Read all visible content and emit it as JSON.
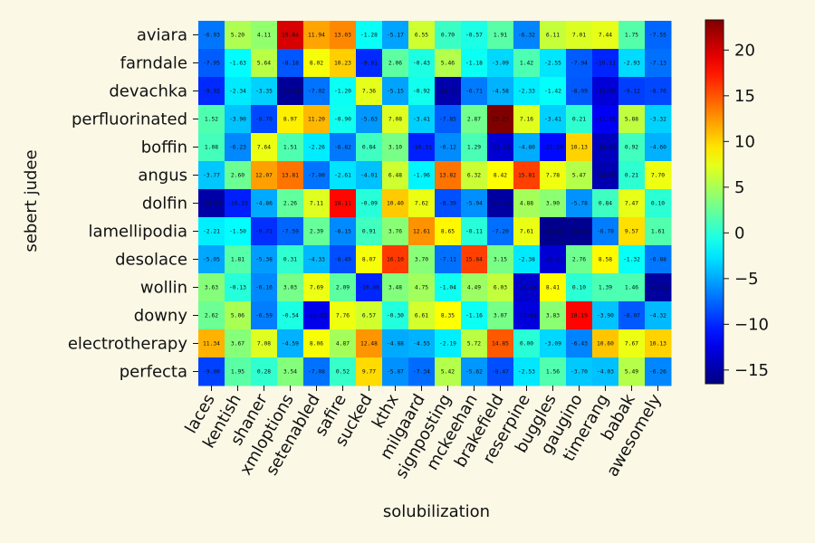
{
  "chart_data": {
    "type": "heatmap",
    "title": "",
    "xlabel": "solubilization",
    "ylabel": "sebert judee",
    "x_categories": [
      "laces",
      "kentish",
      "shaner",
      "xmloptions",
      "setenabled",
      "safire",
      "sucked",
      "kthx",
      "milgaard",
      "signposting",
      "mckeehan",
      "brakefield",
      "reserpine",
      "buggles",
      "gaugino",
      "timerang",
      "babak",
      "awesomely"
    ],
    "y_categories": [
      "aviara",
      "farndale",
      "devachka",
      "perfluorinated",
      "boffin",
      "angus",
      "dolfin",
      "lamellipodia",
      "desolace",
      "wollin",
      "downy",
      "electrotherapy",
      "perfecta"
    ],
    "values": [
      [
        -6.93,
        5.2,
        4.11,
        19.84,
        11.94,
        13.03,
        -1.28,
        -5.17,
        6.55,
        0.7,
        -0.57,
        1.91,
        -6.32,
        6.11,
        7.01,
        7.44,
        1.75,
        -7.55
      ],
      [
        -7.95,
        -1.63,
        5.64,
        -8.18,
        8.02,
        10.23,
        -9.91,
        2.06,
        -0.43,
        5.46,
        -1.18,
        -3.09,
        1.42,
        -2.55,
        -7.94,
        -10.11,
        -2.93,
        -7.13
      ],
      [
        -9.92,
        -2.34,
        -3.35,
        -15.56,
        -7.02,
        -1.2,
        7.36,
        -5.15,
        -0.92,
        -14.77,
        -6.71,
        -4.58,
        -2.33,
        -1.42,
        -8.09,
        -13.09,
        -9.12,
        -8.76
      ],
      [
        1.52,
        -3.9,
        -8.7,
        8.97,
        11.2,
        -0.9,
        -5.63,
        7.08,
        -3.41,
        -7.85,
        2.87,
        23.27,
        7.16,
        -3.41,
        0.21,
        -11.95,
        5.88,
        -3.32
      ],
      [
        1.08,
        -6.23,
        7.64,
        1.51,
        -2.26,
        -6.82,
        0.84,
        3.1,
        -10.31,
        -6.12,
        1.29,
        -13.26,
        -4.8,
        -11.2,
        10.13,
        -14.05,
        0.92,
        -4.6
      ],
      [
        -3.77,
        2.6,
        12.07,
        13.81,
        -7.0,
        -2.61,
        -4.01,
        6.48,
        -1.96,
        13.82,
        6.32,
        8.42,
        15.81,
        7.78,
        5.47,
        -14.6,
        0.21,
        7.7
      ],
      [
        -14.96,
        -10.33,
        -4.86,
        2.26,
        7.11,
        18.11,
        -0.09,
        10.4,
        7.62,
        -8.39,
        -5.94,
        -15.16,
        4.88,
        3.9,
        -5.78,
        0.84,
        7.47,
        0.1
      ],
      [
        -2.21,
        -1.5,
        -9.71,
        -7.59,
        2.39,
        -6.15,
        0.91,
        3.76,
        12.61,
        8.65,
        -0.11,
        -7.2,
        7.61,
        -15.99,
        -15.85,
        -6.7,
        9.57,
        1.61
      ],
      [
        -5.05,
        1.81,
        -5.38,
        0.31,
        -4.33,
        -8.49,
        8.07,
        16.1,
        3.7,
        -7.11,
        15.84,
        3.15,
        -2.38,
        -13.21,
        2.76,
        8.58,
        -1.32,
        -6.88
      ],
      [
        3.63,
        -0.13,
        -6.16,
        3.03,
        7.69,
        2.09,
        -10.06,
        3.48,
        4.75,
        -1.04,
        4.49,
        6.03,
        -13.54,
        8.41,
        0.1,
        1.39,
        1.46,
        -15.32
      ],
      [
        2.62,
        5.06,
        -6.59,
        -0.54,
        -12.33,
        7.76,
        6.57,
        -0.3,
        6.61,
        8.35,
        -1.16,
        3.07,
        -12.84,
        3.83,
        18.19,
        -3.9,
        -8.07,
        -4.32
      ],
      [
        11.34,
        3.67,
        7.08,
        -4.59,
        8.06,
        4.87,
        12.48,
        -4.88,
        -4.55,
        -2.19,
        5.72,
        14.85,
        0.0,
        -3.09,
        -6.43,
        10.6,
        7.67,
        10.13
      ],
      [
        -9.0,
        1.95,
        0.28,
        3.54,
        -7.08,
        0.52,
        9.77,
        -5.87,
        -7.34,
        5.42,
        -5.62,
        -8.47,
        -2.53,
        1.56,
        -3.7,
        -4.03,
        5.49,
        -6.26
      ]
    ],
    "colorscale": "jet",
    "vmin": -16.5,
    "vmax": 23.3,
    "colorbar_ticks": [
      -15,
      -10,
      -5,
      0,
      5,
      10,
      15,
      20
    ],
    "grid": false,
    "legend": "colorbar-right"
  }
}
